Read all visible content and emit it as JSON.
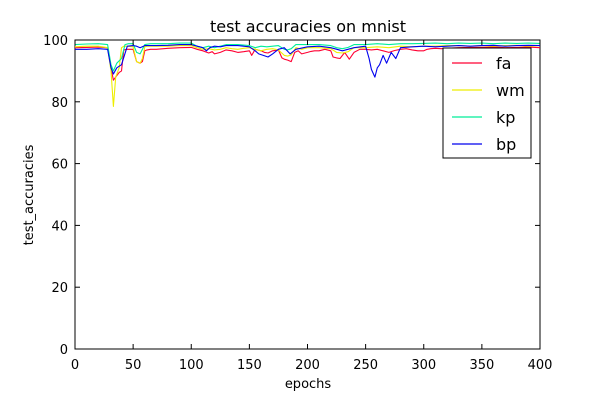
{
  "chart_data": {
    "type": "line",
    "title": "test accuracies on mnist",
    "xlabel": "epochs",
    "ylabel": "test_accuracies",
    "xlim": [
      0,
      400
    ],
    "ylim": [
      0,
      100
    ],
    "xticks": [
      "0",
      "50",
      "100",
      "150",
      "200",
      "250",
      "300",
      "350",
      "400"
    ],
    "yticks": [
      "0",
      "20",
      "40",
      "60",
      "80",
      "100"
    ],
    "grid": false,
    "legend_position": "top-right",
    "series": [
      {
        "name": "fa",
        "color": "#ff0033",
        "x": [
          0,
          10,
          20,
          28,
          31,
          33,
          35,
          38,
          40,
          42,
          45,
          50,
          53,
          56,
          58,
          60,
          62,
          65,
          70,
          80,
          90,
          100,
          105,
          110,
          115,
          118,
          120,
          125,
          130,
          135,
          140,
          145,
          150,
          152,
          155,
          160,
          163,
          166,
          170,
          175,
          178,
          180,
          183,
          186,
          189,
          192,
          195,
          200,
          203,
          206,
          210,
          215,
          220,
          222,
          225,
          228,
          232,
          236,
          240,
          245,
          250,
          255,
          260,
          265,
          270,
          275,
          280,
          285,
          290,
          295,
          300,
          303,
          306,
          310,
          315,
          320,
          330,
          340,
          350,
          360,
          370,
          380,
          390,
          400
        ],
        "y": [
          97.5,
          97.6,
          97.7,
          97.5,
          91,
          87,
          88,
          89.5,
          90,
          96.8,
          97,
          97,
          93,
          92.5,
          93,
          96.5,
          96.8,
          97,
          97,
          97.3,
          97.5,
          97.6,
          97,
          96.5,
          95.8,
          96.2,
          95.5,
          96,
          96.8,
          96.5,
          96,
          96.2,
          96.5,
          95,
          97,
          96.5,
          96,
          95.8,
          96.5,
          96.8,
          94.2,
          93.8,
          93.5,
          93,
          96,
          96.5,
          95.5,
          96,
          96.3,
          96.5,
          96.5,
          97,
          96.5,
          94.5,
          94.2,
          94,
          96,
          93.8,
          96,
          97,
          97,
          96.8,
          97,
          96.5,
          96,
          96.6,
          97,
          97.2,
          96.8,
          96.5,
          96.5,
          97,
          97.2,
          97.3,
          97.2,
          97.3,
          97.5,
          97.6,
          97.6,
          97.7,
          97.5,
          97.6,
          97.7,
          97.5
        ]
      },
      {
        "name": "wm",
        "color": "#eeee00",
        "x": [
          0,
          10,
          20,
          28,
          31,
          33,
          35,
          38,
          40,
          42,
          45,
          50,
          53,
          56,
          58,
          60,
          62,
          65,
          70,
          80,
          90,
          100,
          105,
          110,
          115,
          120,
          125,
          130,
          135,
          140,
          145,
          150,
          155,
          160,
          165,
          170,
          175,
          180,
          183,
          186,
          190,
          195,
          200,
          210,
          220,
          225,
          230,
          235,
          240,
          250,
          260,
          270,
          280,
          290,
          300,
          310,
          320,
          330,
          340,
          350,
          360,
          370,
          380,
          390,
          400
        ],
        "y": [
          97.8,
          98,
          98,
          97.5,
          90,
          78.5,
          88,
          91,
          97.5,
          98,
          98,
          97.8,
          93,
          92.5,
          94,
          97.8,
          98,
          98,
          98,
          98,
          98.2,
          98.2,
          97.5,
          97,
          97.2,
          96.8,
          97,
          97.5,
          97.2,
          97,
          97.3,
          97.5,
          97,
          96.5,
          97,
          97.2,
          96.8,
          95,
          94.8,
          95.2,
          97.5,
          97,
          97.5,
          97.5,
          97.2,
          96,
          95.8,
          96.2,
          97.5,
          97.5,
          97.8,
          97.5,
          98,
          97.8,
          98,
          98,
          98.2,
          98.2,
          98,
          98.2,
          98,
          98.2,
          98.3,
          98,
          98.2
        ]
      },
      {
        "name": "kp",
        "color": "#00ee99",
        "x": [
          0,
          10,
          20,
          28,
          31,
          33,
          36,
          40,
          43,
          46,
          50,
          53,
          56,
          60,
          65,
          70,
          80,
          90,
          100,
          105,
          110,
          115,
          120,
          125,
          130,
          140,
          150,
          155,
          160,
          165,
          170,
          175,
          180,
          183,
          186,
          190,
          200,
          210,
          220,
          225,
          230,
          235,
          240,
          250,
          260,
          270,
          280,
          290,
          300,
          310,
          320,
          330,
          340,
          350,
          360,
          370,
          380,
          390,
          400
        ],
        "y": [
          98.5,
          98.7,
          98.8,
          98.5,
          92,
          90,
          92.5,
          94,
          98.5,
          98.8,
          98.8,
          96,
          95.5,
          98.5,
          98.8,
          98.8,
          98.8,
          99,
          99,
          98,
          97.5,
          98,
          97.5,
          98,
          98.5,
          98.5,
          98.2,
          97.5,
          98,
          97.8,
          98,
          98.2,
          97,
          96.8,
          97.2,
          98.5,
          98.5,
          98.5,
          98.2,
          97.5,
          97.2,
          97.6,
          98.5,
          98.5,
          98.8,
          98.5,
          98.8,
          98.8,
          98.9,
          99,
          98.8,
          99,
          98.9,
          99,
          98.8,
          99,
          98.9,
          99,
          98.9
        ]
      },
      {
        "name": "bp",
        "color": "#0000ee",
        "x": [
          0,
          10,
          20,
          28,
          31,
          33,
          36,
          40,
          45,
          50,
          53,
          56,
          60,
          70,
          80,
          90,
          100,
          105,
          110,
          113,
          116,
          120,
          125,
          130,
          140,
          150,
          155,
          158,
          162,
          166,
          170,
          175,
          180,
          185,
          190,
          200,
          210,
          220,
          230,
          240,
          250,
          253,
          255,
          258,
          260,
          262,
          265,
          268,
          272,
          276,
          280,
          290,
          300,
          310,
          320,
          330,
          340,
          350,
          360,
          370,
          380,
          390,
          400
        ],
        "y": [
          97,
          97,
          97.2,
          97,
          91,
          89,
          91,
          92,
          98,
          98.2,
          98,
          97.5,
          98.2,
          98.2,
          98.3,
          98.5,
          98.5,
          98,
          97.5,
          96.5,
          97.5,
          98,
          97.8,
          98.2,
          98.2,
          97.8,
          96.5,
          95.5,
          95,
          94.5,
          95.5,
          97,
          97.5,
          95.5,
          97,
          97.8,
          98,
          97.5,
          96.5,
          97.5,
          98,
          94,
          90.5,
          88,
          91,
          92,
          95,
          92.5,
          96,
          94,
          97.5,
          97.8,
          98,
          97.8,
          98,
          98.2,
          98,
          98.2,
          98.3,
          98,
          98.2,
          98.3,
          98.2
        ]
      }
    ]
  }
}
